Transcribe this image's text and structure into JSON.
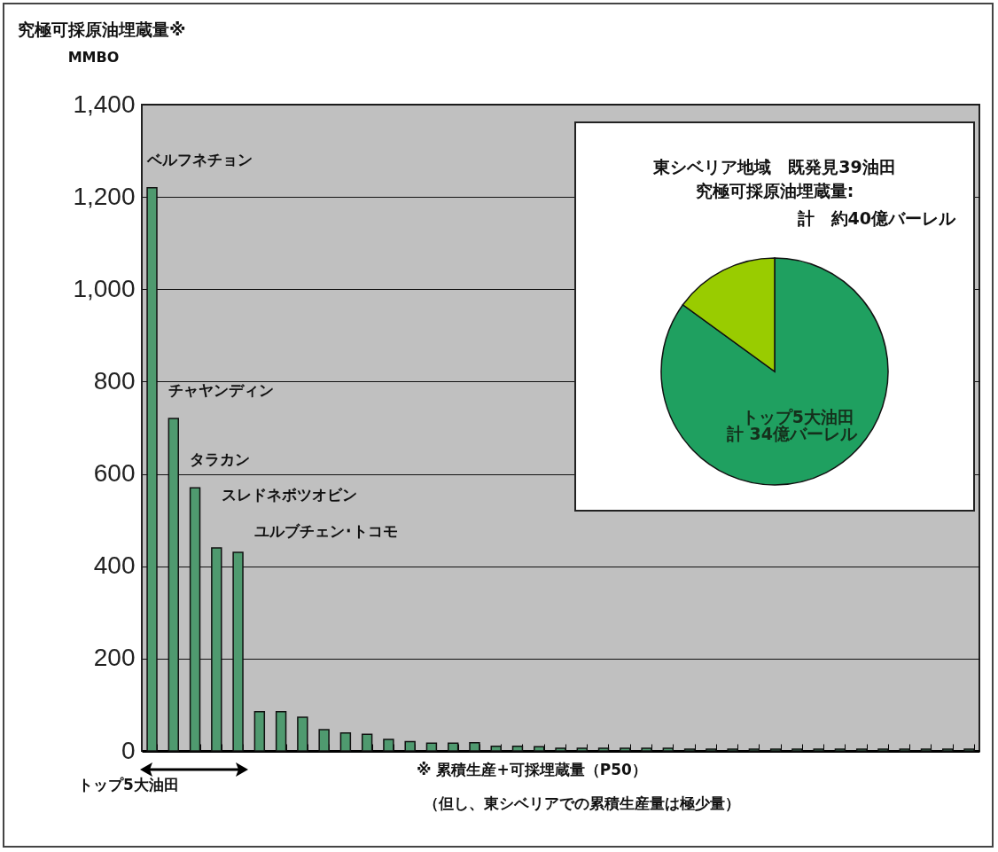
{
  "chart_data": [
    {
      "type": "bar",
      "title": "究極可採原油埋蔵量※",
      "ylabel": "MMBO",
      "categories": [
        null,
        null,
        null,
        null,
        null,
        null,
        null,
        null,
        null,
        null,
        null,
        null,
        null,
        null,
        null,
        null,
        null,
        null,
        null,
        null,
        null,
        null,
        null,
        null,
        null,
        null,
        null,
        null,
        null,
        null,
        null,
        null,
        null,
        null,
        null,
        null,
        null,
        null,
        null
      ],
      "values": [
        1220,
        720,
        570,
        440,
        430,
        85,
        85,
        73,
        46,
        39,
        36,
        25,
        20,
        17,
        17,
        18,
        10,
        10,
        9,
        6,
        6,
        6,
        6,
        6,
        6,
        4,
        4,
        4,
        4,
        4,
        4,
        4,
        4,
        4,
        4,
        4,
        4,
        4,
        4
      ],
      "color": "#4f9a6f",
      "ylim": [
        0,
        1400
      ],
      "yticks": [
        0,
        200,
        400,
        600,
        800,
        {
          "value": 1000,
          "label": "1,000"
        },
        {
          "value": 1200,
          "label": "1,200"
        },
        {
          "value": 1400,
          "label": "1,400"
        }
      ],
      "grid": "y",
      "tick_labels": "y",
      "annotations": [
        "ベルフネチョン",
        "チャヤンディン",
        "タラカン",
        "スレドネボツオビン",
        "ユルブチェン･トコモ",
        "トップ5大油田",
        "※ 累積生産+可採埋蔵量（P50）",
        "（但し、東シベリアでの累積生産量は極少量）"
      ]
    },
    {
      "type": "pie",
      "title": "東シベリア地域　既発見39油田",
      "subtitle": "究極可採原油埋蔵量:",
      "categories": [
        "トップ5大油田",
        null
      ],
      "values": [
        85,
        15
      ],
      "colors": [
        "#1fa060",
        "#99cc00"
      ],
      "annotations": [
        "計　約40億バーレル",
        "計 34億バーレル"
      ]
    }
  ]
}
